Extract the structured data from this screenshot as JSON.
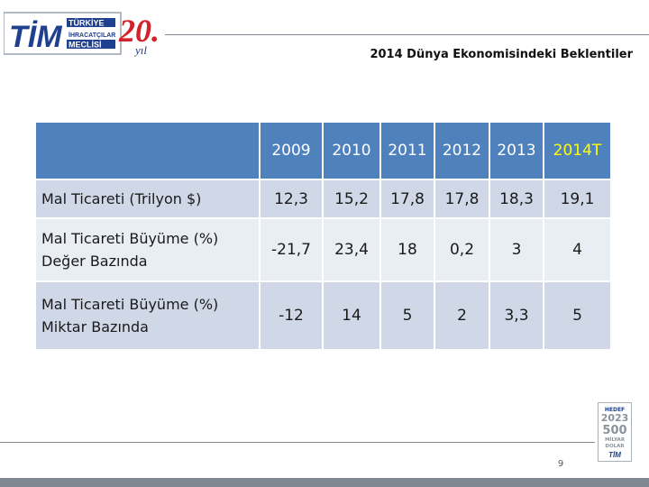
{
  "logo": {
    "brand": "TİM",
    "line1": "TÜRKİYE",
    "line2": "İHRACATÇILAR",
    "line3": "MECLİSİ",
    "anniv_number": "20.",
    "anniv_suffix": "yıl"
  },
  "slide_title": "2014 Dünya Ekonomisindeki Beklentiler",
  "table": {
    "headers": [
      "",
      "2009",
      "2010",
      "2011",
      "2012",
      "2013",
      "2014T"
    ],
    "rows": [
      {
        "label_line1": "Mal Ticareti (Trilyon $)",
        "label_line2": "",
        "values": [
          "12,3",
          "15,2",
          "17,8",
          "17,8",
          "18,3",
          "19,1"
        ]
      },
      {
        "label_line1": "Mal Ticareti Büyüme (%)",
        "label_line2": "Değer Bazında",
        "values": [
          "-21,7",
          "23,4",
          "18",
          "0,2",
          "3",
          "4"
        ]
      },
      {
        "label_line1": "Mal Ticareti Büyüme (%)",
        "label_line2": "Miktar Bazında",
        "values": [
          "-12",
          "14",
          "5",
          "2",
          "3,3",
          "5"
        ]
      }
    ]
  },
  "badge": {
    "line1": "HEDEF",
    "line2": "2023",
    "line3": "500",
    "line4": "MİLYAR",
    "line5": "DOLAR",
    "line6": "TİM"
  },
  "page_number": "9",
  "colors": {
    "header_fill": "#4f81bd",
    "row_dark": "#d0d8e8",
    "row_light": "#e9edf4",
    "forecast_value": "#c00000",
    "forecast_header": "#ffff00",
    "logo_red": "#d2232a",
    "logo_blue": "#1f3f8f"
  }
}
